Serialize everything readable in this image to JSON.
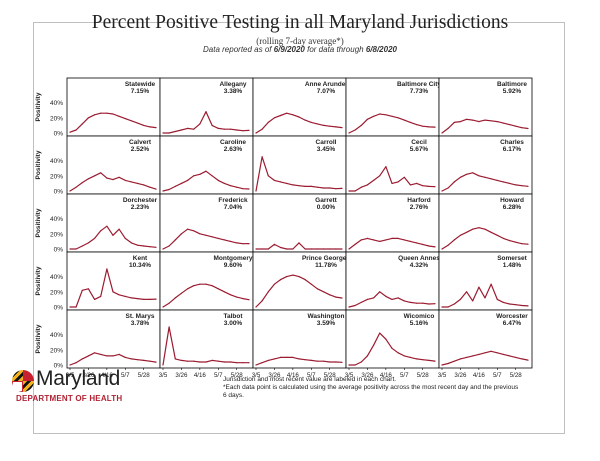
{
  "header": {
    "title": "Percent Positive Testing in all Maryland Jurisdictions",
    "subtitle": "(rolling 7-day average*)",
    "reported_prefix": "Data reported as of",
    "reported_date": "6/9/2020",
    "through_prefix": "for data through",
    "through_date": "6/8/2020"
  },
  "footer": {
    "brand_name": "Maryland",
    "department": "DEPARTMENT OF HEALTH",
    "note_line1": "Jurisdiction and most recent value are labeled in each chart.",
    "note_line2": "*Each data point is calculated using the average positivity across the most recent day and the previous 6 days."
  },
  "chart_data": {
    "type": "line",
    "layout": "small-multiples",
    "ylabel": "Positivity",
    "yticks": [
      "0%",
      "20%",
      "40%"
    ],
    "ylim": [
      0,
      50
    ],
    "xticks": [
      "3/5",
      "3/26",
      "4/16",
      "5/7",
      "5/28"
    ],
    "line_color": "#9b1b30",
    "grid": false,
    "x_dates_weekly": [
      "3/5",
      "3/12",
      "3/19",
      "3/26",
      "4/2",
      "4/9",
      "4/16",
      "4/23",
      "4/30",
      "5/7",
      "5/14",
      "5/21",
      "5/28",
      "6/4",
      "6/8"
    ],
    "panels": [
      {
        "name": "Statewide",
        "latest": "7.15%",
        "values": [
          1,
          4,
          12,
          20,
          24,
          26,
          26,
          25,
          22,
          19,
          16,
          13,
          10,
          8,
          7.15
        ]
      },
      {
        "name": "Allegany",
        "latest": "3.38%",
        "values": [
          0,
          0,
          2,
          4,
          6,
          5,
          12,
          28,
          10,
          6,
          5,
          5,
          4,
          3,
          3.38
        ]
      },
      {
        "name": "Anne Arundel",
        "latest": "7.07%",
        "values": [
          0,
          5,
          14,
          20,
          23,
          26,
          24,
          21,
          17,
          14,
          12,
          10,
          9,
          8,
          7.07
        ]
      },
      {
        "name": "Baltimore City",
        "latest": "7.73%",
        "values": [
          0,
          4,
          10,
          18,
          22,
          25,
          24,
          22,
          20,
          17,
          14,
          11,
          9,
          8,
          7.73
        ]
      },
      {
        "name": "Baltimore",
        "latest": "5.92%",
        "values": [
          0,
          6,
          14,
          15,
          18,
          17,
          15,
          17,
          16,
          15,
          13,
          11,
          9,
          7,
          5.92
        ]
      },
      {
        "name": "Calvert",
        "latest": "2.52%",
        "values": [
          0,
          5,
          11,
          16,
          20,
          24,
          17,
          15,
          18,
          14,
          12,
          10,
          8,
          5,
          2.52
        ]
      },
      {
        "name": "Caroline",
        "latest": "2.63%",
        "values": [
          0,
          2,
          6,
          10,
          14,
          20,
          22,
          26,
          20,
          14,
          10,
          7,
          5,
          3,
          2.63
        ]
      },
      {
        "name": "Carroll",
        "latest": "3.45%",
        "values": [
          0,
          45,
          20,
          14,
          12,
          10,
          8,
          7,
          6,
          6,
          5,
          4,
          4,
          3,
          3.45
        ]
      },
      {
        "name": "Cecil",
        "latest": "5.67%",
        "values": [
          0,
          0,
          5,
          8,
          14,
          20,
          32,
          10,
          12,
          18,
          8,
          10,
          7,
          6,
          5.67
        ]
      },
      {
        "name": "Charles",
        "latest": "6.17%",
        "values": [
          0,
          4,
          12,
          18,
          22,
          24,
          20,
          18,
          16,
          14,
          12,
          10,
          8,
          7,
          6.17
        ]
      },
      {
        "name": "Dorchester",
        "latest": "2.23%",
        "values": [
          0,
          0,
          4,
          8,
          14,
          24,
          30,
          18,
          26,
          14,
          8,
          5,
          4,
          3,
          2.23
        ]
      },
      {
        "name": "Frederick",
        "latest": "7.04%",
        "values": [
          0,
          4,
          12,
          20,
          26,
          24,
          20,
          18,
          16,
          14,
          12,
          10,
          8,
          7,
          7.04
        ]
      },
      {
        "name": "Garrett",
        "latest": "0.00%",
        "values": [
          0,
          0,
          0,
          6,
          2,
          0,
          0,
          8,
          0,
          0,
          0,
          0,
          0,
          0,
          0
        ]
      },
      {
        "name": "Harford",
        "latest": "2.76%",
        "values": [
          0,
          6,
          12,
          14,
          12,
          10,
          12,
          14,
          14,
          12,
          10,
          8,
          6,
          4,
          2.76
        ]
      },
      {
        "name": "Howard",
        "latest": "6.28%",
        "values": [
          0,
          5,
          12,
          18,
          22,
          26,
          28,
          26,
          22,
          18,
          14,
          11,
          9,
          7,
          6.28
        ]
      },
      {
        "name": "Kent",
        "latest": "10.34%",
        "values": [
          0,
          0,
          22,
          24,
          10,
          14,
          50,
          20,
          16,
          14,
          12,
          11,
          10,
          10,
          10.34
        ]
      },
      {
        "name": "Montgomery",
        "latest": "9.60%",
        "values": [
          0,
          5,
          12,
          18,
          24,
          28,
          30,
          30,
          28,
          24,
          20,
          16,
          13,
          11,
          9.6
        ]
      },
      {
        "name": "Prince Georges",
        "latest": "11.78%",
        "values": [
          0,
          8,
          20,
          30,
          36,
          40,
          42,
          40,
          36,
          30,
          24,
          20,
          16,
          13,
          11.78
        ]
      },
      {
        "name": "Queen Annes",
        "latest": "4.32%",
        "values": [
          0,
          2,
          6,
          10,
          12,
          20,
          14,
          10,
          12,
          8,
          6,
          5,
          5,
          4,
          4.32
        ]
      },
      {
        "name": "Somerset",
        "latest": "1.48%",
        "values": [
          0,
          0,
          4,
          10,
          20,
          8,
          26,
          12,
          30,
          10,
          6,
          4,
          3,
          2,
          1.48
        ]
      },
      {
        "name": "St. Marys",
        "latest": "3.78%",
        "values": [
          0,
          3,
          8,
          12,
          16,
          14,
          12,
          12,
          14,
          10,
          8,
          7,
          6,
          5,
          3.78
        ]
      },
      {
        "name": "Talbot",
        "latest": "3.00%",
        "values": [
          0,
          50,
          8,
          6,
          5,
          5,
          4,
          4,
          6,
          5,
          4,
          4,
          3,
          3,
          3
        ]
      },
      {
        "name": "Washington",
        "latest": "3.59%",
        "values": [
          0,
          3,
          6,
          8,
          10,
          10,
          10,
          8,
          7,
          6,
          5,
          5,
          4,
          4,
          3.59
        ]
      },
      {
        "name": "Wicomico",
        "latest": "5.16%",
        "values": [
          0,
          0,
          4,
          12,
          26,
          42,
          34,
          22,
          16,
          12,
          10,
          8,
          7,
          6,
          5.16
        ]
      },
      {
        "name": "Worcester",
        "latest": "6.47%",
        "values": [
          0,
          2,
          5,
          8,
          10,
          12,
          14,
          16,
          18,
          16,
          14,
          12,
          10,
          8,
          6.47
        ]
      }
    ]
  },
  "colors": {
    "line": "#9b1b30",
    "text": "#222222",
    "panel_border": "#000000",
    "flag_gold": "#f2b320",
    "flag_black": "#111111",
    "flag_red": "#c8202f",
    "flag_white": "#ffffff",
    "department_red": "#b22233"
  }
}
